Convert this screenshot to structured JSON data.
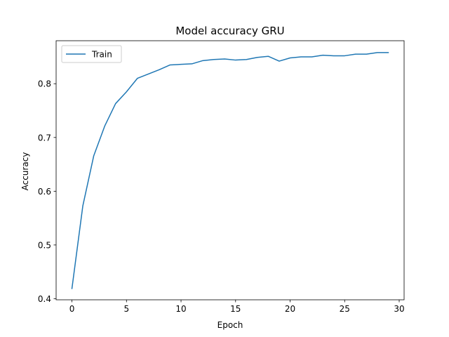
{
  "chart_data": {
    "type": "line",
    "title": "Model accuracy GRU",
    "xlabel": "Epoch",
    "ylabel": "Accuracy",
    "xlim": [
      -1.45,
      30.45
    ],
    "ylim": [
      0.398,
      0.88
    ],
    "xticks": [
      0,
      5,
      10,
      15,
      20,
      25,
      30
    ],
    "yticks": [
      0.4,
      0.5,
      0.6,
      0.7,
      0.8
    ],
    "xtick_labels": [
      "0",
      "5",
      "10",
      "15",
      "20",
      "25",
      "30"
    ],
    "ytick_labels": [
      "0.4",
      "0.5",
      "0.6",
      "0.7",
      "0.8"
    ],
    "grid": false,
    "legend_position": "upper-left",
    "series": [
      {
        "name": "Train",
        "color": "#1f77b4",
        "x": [
          0,
          1,
          2,
          3,
          4,
          5,
          6,
          7,
          8,
          9,
          10,
          11,
          12,
          13,
          14,
          15,
          16,
          17,
          18,
          19,
          20,
          21,
          22,
          23,
          24,
          25,
          26,
          27,
          28,
          29
        ],
        "y": [
          0.419,
          0.573,
          0.666,
          0.721,
          0.763,
          0.785,
          0.81,
          0.818,
          0.826,
          0.835,
          0.836,
          0.837,
          0.843,
          0.845,
          0.846,
          0.844,
          0.845,
          0.849,
          0.851,
          0.842,
          0.848,
          0.85,
          0.85,
          0.853,
          0.852,
          0.852,
          0.855,
          0.855,
          0.858,
          0.858
        ]
      }
    ]
  }
}
